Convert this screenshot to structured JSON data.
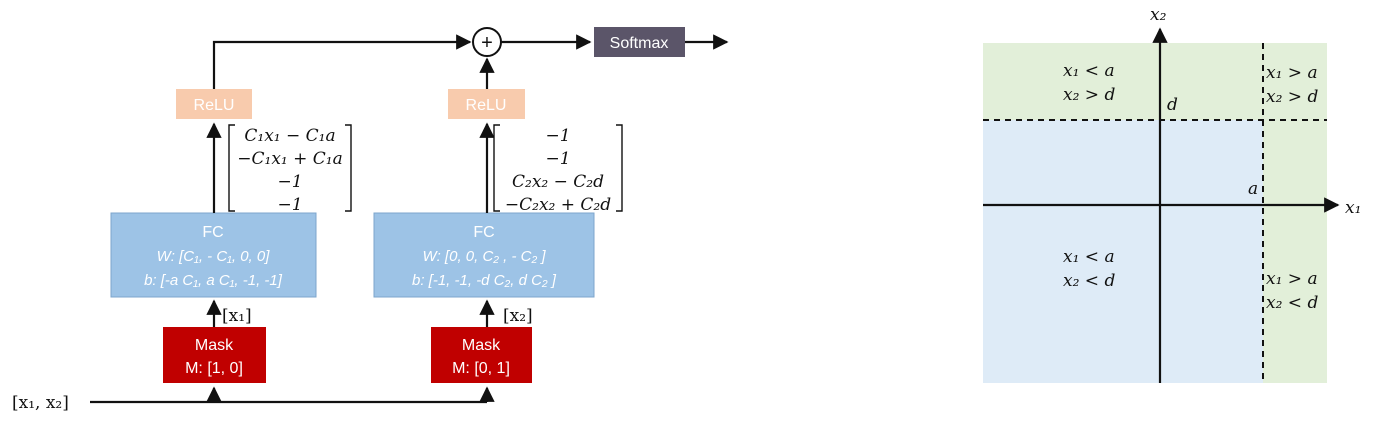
{
  "network": {
    "input_label": "[x₁, x₂]",
    "softmax_label": "Softmax",
    "plus_symbol": "+",
    "left_branch": {
      "mask_title": "Mask",
      "mask_value": "M: [1, 0]",
      "mask_output": "[x₁]",
      "fc_title": "FC",
      "fc_weights": "W: [C₁, - C₁, 0, 0]",
      "fc_bias": "b: [-a C₁, a C₁, -1, -1]",
      "relu_label": "ReLU",
      "vector": [
        "C₁x₁ − C₁a",
        "−C₁x₁ + C₁a",
        "−1",
        "−1"
      ]
    },
    "right_branch": {
      "mask_title": "Mask",
      "mask_value": "M: [0, 1]",
      "mask_output": "[x₂]",
      "fc_title": "FC",
      "fc_weights": "W: [0, 0, C₂ , - C₂ ]",
      "fc_bias": "b: [-1, -1, -d C₂, d C₂ ]",
      "relu_label": "ReLU",
      "vector": [
        "−1",
        "−1",
        "C₂x₂ − C₂d",
        "−C₂x₂ + C₂d"
      ]
    }
  },
  "plot": {
    "x_axis_label": "x₁",
    "y_axis_label": "x₂",
    "x_threshold_label": "a",
    "y_threshold_label": "d",
    "regions": {
      "top_left": [
        "x₁ < a",
        "x₂ > d"
      ],
      "top_right": [
        "x₁ > a",
        "x₂ > d"
      ],
      "bottom_left": [
        "x₁ < a",
        "x₂ < d"
      ],
      "bottom_right": [
        "x₁ > a",
        "x₂ < d"
      ]
    }
  },
  "colors": {
    "mask": "#c00000",
    "fc": "#9dc3e6",
    "relu": "#f8cbad",
    "softmax": "#5b5569",
    "region_blue": "#deebf7",
    "region_green": "#e2efd9"
  }
}
